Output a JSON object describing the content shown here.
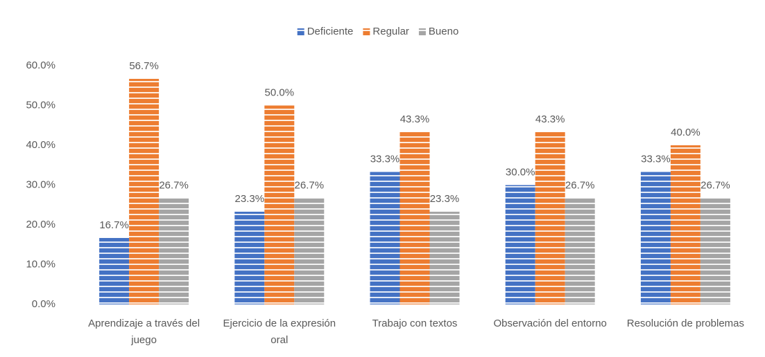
{
  "chart_data": {
    "type": "bar",
    "categories": [
      "Aprendizaje a través del juego",
      "Ejercicio de la expresión oral",
      "Trabajo con textos",
      "Observación del entorno",
      "Resolución de problemas"
    ],
    "series": [
      {
        "name": "Deficiente",
        "color": "#4472c4",
        "values": [
          16.7,
          23.3,
          33.3,
          30.0,
          33.3
        ],
        "value_labels": [
          "16.7%",
          "23.3%",
          "33.3%",
          "30.0%",
          "33.3%"
        ]
      },
      {
        "name": "Regular",
        "color": "#ed7d31",
        "values": [
          56.7,
          50.0,
          43.3,
          43.3,
          40.0
        ],
        "value_labels": [
          "56.7%",
          "50.0%",
          "43.3%",
          "43.3%",
          "40.0%"
        ]
      },
      {
        "name": "Bueno",
        "color": "#a5a5a5",
        "values": [
          26.7,
          26.7,
          23.3,
          26.7,
          26.7
        ],
        "value_labels": [
          "26.7%",
          "26.7%",
          "23.3%",
          "26.7%",
          "26.7%"
        ]
      }
    ],
    "ylim": [
      0,
      60
    ],
    "yticks": [
      {
        "value": 0,
        "label": "0.0%"
      },
      {
        "value": 10,
        "label": "10.0%"
      },
      {
        "value": 20,
        "label": "20.0%"
      },
      {
        "value": 30,
        "label": "30.0%"
      },
      {
        "value": 40,
        "label": "40.0%"
      },
      {
        "value": 50,
        "label": "50.0%"
      },
      {
        "value": 60,
        "label": "60.0%"
      }
    ],
    "grid": false,
    "legend": "top"
  }
}
